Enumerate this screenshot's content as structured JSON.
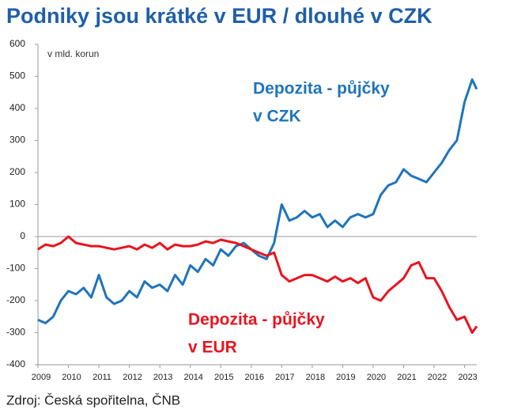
{
  "chart_data": {
    "type": "line",
    "title": "Podniky jsou krátké v EUR / dlouhé v CZK",
    "y_unit_label": "v mld. korun",
    "source": "Zdroj: Česká spořitelna, ČNB",
    "x": [
      2009,
      2009.25,
      2009.5,
      2009.75,
      2010,
      2010.25,
      2010.5,
      2010.75,
      2011,
      2011.25,
      2011.5,
      2011.75,
      2012,
      2012.25,
      2012.5,
      2012.75,
      2013,
      2013.25,
      2013.5,
      2013.75,
      2014,
      2014.25,
      2014.5,
      2014.75,
      2015,
      2015.25,
      2015.5,
      2015.75,
      2016,
      2016.25,
      2016.5,
      2016.75,
      2017,
      2017.25,
      2017.5,
      2017.75,
      2018,
      2018.25,
      2018.5,
      2018.75,
      2019,
      2019.25,
      2019.5,
      2019.75,
      2020,
      2020.25,
      2020.5,
      2020.75,
      2021,
      2021.25,
      2021.5,
      2021.75,
      2022,
      2022.25,
      2022.5,
      2022.75,
      2023,
      2023.25,
      2023.4
    ],
    "series": [
      {
        "name": "Depozita - půjčky v CZK",
        "color": "#1f74bc",
        "label_lines": [
          "Depozita - půjčky",
          "v CZK"
        ],
        "values": [
          -260,
          -270,
          -250,
          -200,
          -170,
          -180,
          -160,
          -190,
          -120,
          -190,
          -210,
          -200,
          -170,
          -190,
          -140,
          -160,
          -150,
          -170,
          -120,
          -150,
          -90,
          -110,
          -70,
          -90,
          -40,
          -60,
          -30,
          -20,
          -40,
          -60,
          -70,
          -20,
          100,
          50,
          60,
          80,
          60,
          70,
          30,
          50,
          30,
          60,
          70,
          60,
          70,
          130,
          160,
          170,
          210,
          190,
          180,
          170,
          200,
          230,
          270,
          300,
          420,
          490,
          460
        ]
      },
      {
        "name": "Depozita - půjčky v EUR",
        "color": "#e8141e",
        "label_lines": [
          "Depozita - půjčky",
          "v EUR"
        ],
        "values": [
          -40,
          -25,
          -30,
          -20,
          0,
          -20,
          -25,
          -30,
          -30,
          -35,
          -40,
          -35,
          -30,
          -40,
          -25,
          -35,
          -20,
          -40,
          -25,
          -30,
          -30,
          -25,
          -15,
          -20,
          -10,
          -15,
          -20,
          -30,
          -40,
          -50,
          -60,
          -50,
          -120,
          -140,
          -130,
          -120,
          -120,
          -130,
          -140,
          -125,
          -140,
          -130,
          -145,
          -130,
          -190,
          -200,
          -170,
          -150,
          -130,
          -90,
          -80,
          -130,
          -130,
          -170,
          -220,
          -260,
          -250,
          -300,
          -280
        ]
      }
    ],
    "xlim": [
      2009,
      2023.4
    ],
    "xticks": [
      2009,
      2010,
      2011,
      2012,
      2013,
      2014,
      2015,
      2016,
      2017,
      2018,
      2019,
      2020,
      2021,
      2022,
      2023
    ],
    "ylim": [
      -400,
      600
    ],
    "yticks": [
      -400,
      -300,
      -200,
      -100,
      0,
      100,
      200,
      300,
      400,
      500,
      600
    ]
  }
}
